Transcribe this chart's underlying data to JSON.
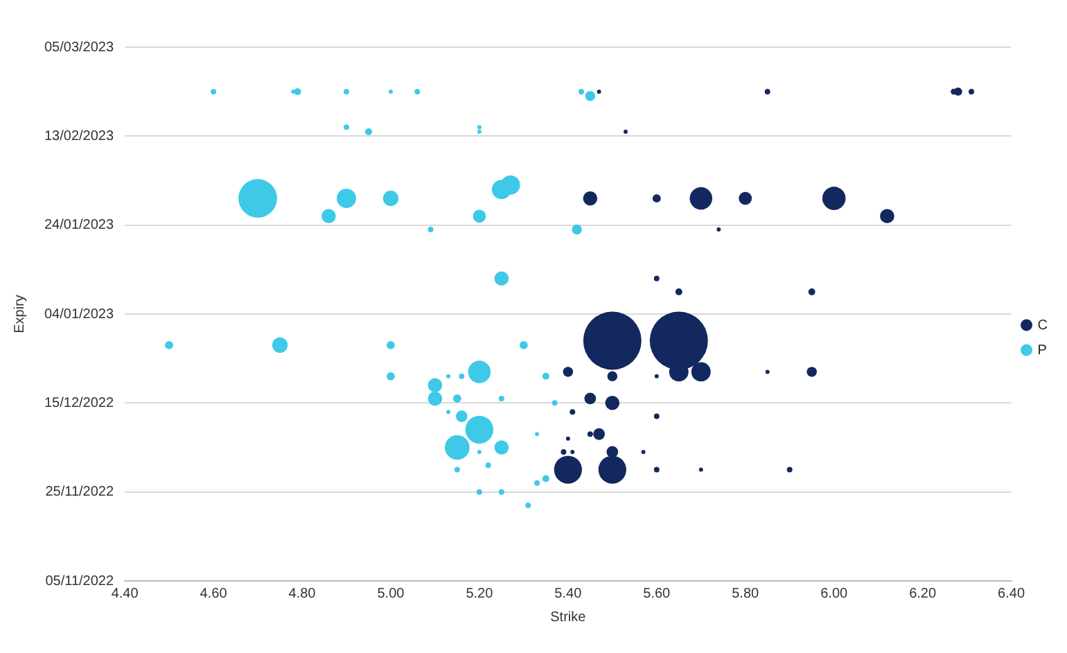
{
  "chart_data": {
    "type": "bubble",
    "orientation": "horizontal",
    "relative": false,
    "xlabel": "Strike",
    "ylabel": "Expiry",
    "grid": "y",
    "legend": "right",
    "marker": "circle",
    "xlim": [
      4.4,
      6.4
    ],
    "xticks": [
      {
        "value": 4.4,
        "label": "4.40"
      },
      {
        "value": 4.6,
        "label": "4.60"
      },
      {
        "value": 4.8,
        "label": "4.80"
      },
      {
        "value": 5.0,
        "label": "5.00"
      },
      {
        "value": 5.2,
        "label": "5.20"
      },
      {
        "value": 5.4,
        "label": "5.40"
      },
      {
        "value": 5.6,
        "label": "5.60"
      },
      {
        "value": 5.8,
        "label": "5.80"
      },
      {
        "value": 6.0,
        "label": "6.00"
      },
      {
        "value": 6.2,
        "label": "6.20"
      },
      {
        "value": 6.4,
        "label": "6.40"
      }
    ],
    "ylim": [
      "2022-11-05",
      "2023-03-05"
    ],
    "yticks": [
      {
        "value": "2022-11-05",
        "label": "05/11/2022"
      },
      {
        "value": "2022-11-25",
        "label": "25/11/2022"
      },
      {
        "value": "2022-12-15",
        "label": "15/12/2022"
      },
      {
        "value": "2023-01-04",
        "label": "04/01/2023"
      },
      {
        "value": "2023-01-24",
        "label": "24/01/2023"
      },
      {
        "value": "2023-02-13",
        "label": "13/02/2023"
      },
      {
        "value": "2023-03-05",
        "label": "05/03/2023"
      }
    ],
    "series": [
      {
        "name": "C",
        "color": "#13285e",
        "values": [
          5.85,
          6.27,
          6.28,
          6.31,
          5.47,
          5.53,
          5.45,
          5.6,
          5.7,
          5.8,
          6.0,
          6.12,
          5.74,
          5.6,
          5.65,
          5.95,
          5.5,
          5.65,
          5.4,
          5.5,
          5.6,
          5.65,
          5.7,
          5.85,
          5.95,
          5.45,
          5.5,
          5.41,
          5.6,
          5.47,
          5.45,
          5.4,
          5.39,
          5.41,
          5.5,
          5.57,
          5.4,
          5.5,
          5.7,
          5.6,
          5.9
        ],
        "x": [
          "2023-02-23",
          "2023-02-23",
          "2023-02-23",
          "2023-02-23",
          "2023-02-23",
          "2023-02-14",
          "2023-01-30",
          "2023-01-30",
          "2023-01-30",
          "2023-01-30",
          "2023-01-30",
          "2023-01-26",
          "2023-01-23",
          "2023-01-12",
          "2023-01-09",
          "2023-01-09",
          "2022-12-29",
          "2022-12-29",
          "2022-12-22",
          "2022-12-21",
          "2022-12-21",
          "2022-12-22",
          "2022-12-22",
          "2022-12-22",
          "2022-12-22",
          "2022-12-16",
          "2022-12-15",
          "2022-12-13",
          "2022-12-12",
          "2022-12-08",
          "2022-12-08",
          "2022-12-07",
          "2022-12-04",
          "2022-12-04",
          "2022-12-04",
          "2022-12-04",
          "2022-11-30",
          "2022-11-30",
          "2022-11-30",
          "2022-11-30",
          "2022-11-30"
        ],
        "sizes": [
          0.009,
          0.01,
          0.02,
          0.009,
          0.005,
          0.005,
          0.06,
          0.02,
          0.15,
          0.05,
          0.16,
          0.06,
          0.005,
          0.009,
          0.014,
          0.014,
          1,
          1,
          0.03,
          0.03,
          0.005,
          0.11,
          0.11,
          0.005,
          0.03,
          0.04,
          0.06,
          0.009,
          0.009,
          0.04,
          0.009,
          0.005,
          0.009,
          0.005,
          0.04,
          0.005,
          0.23,
          0.23,
          0.005,
          0.009,
          0.009
        ]
      },
      {
        "name": "P",
        "color": "#3ec9e8",
        "values": [
          4.6,
          4.78,
          4.79,
          4.9,
          5.0,
          5.06,
          5.45,
          5.43,
          4.9,
          5.2,
          4.95,
          5.2,
          4.7,
          4.9,
          5.0,
          5.25,
          5.27,
          4.86,
          5.2,
          5.42,
          5.09,
          5.25,
          4.5,
          4.75,
          5.0,
          5.3,
          5.0,
          5.2,
          5.35,
          5.13,
          5.16,
          5.1,
          5.1,
          5.15,
          5.13,
          5.16,
          5.2,
          5.15,
          5.25,
          5.2,
          5.22,
          5.15,
          5.33,
          5.35,
          5.2,
          5.25,
          5.31,
          5.37,
          5.33,
          5.25
        ],
        "x": [
          "2023-02-23",
          "2023-02-23",
          "2023-02-23",
          "2023-02-23",
          "2023-02-23",
          "2023-02-23",
          "2023-02-22",
          "2023-02-23",
          "2023-02-15",
          "2023-02-15",
          "2023-02-14",
          "2023-02-14",
          "2023-01-30",
          "2023-01-30",
          "2023-01-30",
          "2023-02-01",
          "2023-02-02",
          "2023-01-26",
          "2023-01-26",
          "2023-01-23",
          "2023-01-23",
          "2023-01-12",
          "2022-12-28",
          "2022-12-28",
          "2022-12-28",
          "2022-12-28",
          "2022-12-21",
          "2022-12-22",
          "2022-12-21",
          "2022-12-21",
          "2022-12-21",
          "2022-12-19",
          "2022-12-16",
          "2022-12-16",
          "2022-12-13",
          "2022-12-12",
          "2022-12-09",
          "2022-12-05",
          "2022-12-05",
          "2022-12-04",
          "2022-12-01",
          "2022-11-30",
          "2022-11-27",
          "2022-11-28",
          "2022-11-25",
          "2022-11-25",
          "2022-11-22",
          "2022-12-15",
          "2022-12-08",
          "2022-12-16"
        ],
        "sizes": [
          0.009,
          0.005,
          0.014,
          0.009,
          0.005,
          0.009,
          0.03,
          0.009,
          0.009,
          0.005,
          0.014,
          0.005,
          0.44,
          0.11,
          0.07,
          0.11,
          0.11,
          0.06,
          0.05,
          0.03,
          0.009,
          0.06,
          0.02,
          0.07,
          0.02,
          0.02,
          0.02,
          0.15,
          0.014,
          0.005,
          0.009,
          0.06,
          0.06,
          0.02,
          0.005,
          0.04,
          0.23,
          0.18,
          0.06,
          0.005,
          0.009,
          0.009,
          0.009,
          0.014,
          0.009,
          0.009,
          0.009,
          0.009,
          0.005,
          0.009
        ]
      }
    ]
  }
}
